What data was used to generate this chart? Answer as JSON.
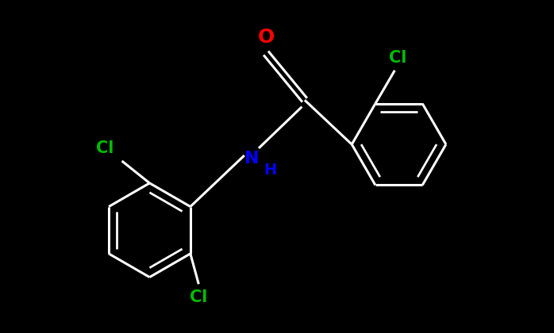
{
  "background_color": "#000000",
  "bond_color": "#ffffff",
  "bond_width": 2.2,
  "atom_colors": {
    "O": "#ff0000",
    "N": "#0000ff",
    "Cl": "#00bb00",
    "C": "#ffffff"
  },
  "font_size_NH": 16,
  "font_size_O": 18,
  "font_size_Cl": 15,
  "figsize": [
    6.98,
    4.2
  ],
  "dpi": 100
}
